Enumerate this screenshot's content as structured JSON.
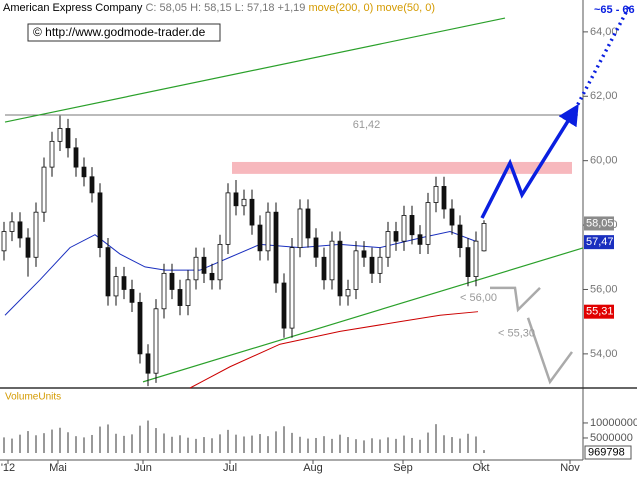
{
  "chart_data": [
    {
      "type": "candlestick",
      "title": "American Express Company",
      "subtitle": "C: 58,05 H: 58,15 L: 57,18 +1,19",
      "source": "© http://www.godmode-trader.de",
      "legend_color": "#d49a00",
      "x": [
        1,
        3,
        5,
        7,
        9,
        11,
        13,
        15,
        17,
        19,
        21,
        23,
        25,
        27,
        29,
        31,
        33,
        35,
        37,
        39,
        41,
        43,
        45,
        47,
        49,
        51,
        53,
        55,
        57,
        59,
        61,
        63,
        65,
        67,
        69,
        71,
        73,
        75,
        77,
        79,
        81,
        83,
        85,
        87,
        89,
        91,
        93,
        95,
        97,
        99,
        101,
        103,
        105,
        107,
        109,
        111,
        113,
        115,
        117,
        119,
        121
      ],
      "open": [
        57.2,
        57.8,
        58.1,
        57.6,
        57.0,
        58.4,
        59.8,
        60.6,
        61.0,
        60.4,
        59.8,
        59.5,
        59.0,
        57.3,
        55.8,
        56.4,
        56.0,
        55.6,
        54.0,
        53.4,
        55.4,
        56.5,
        56.0,
        55.5,
        56.3,
        57.0,
        56.5,
        56.3,
        57.4,
        59.0,
        58.6,
        58.8,
        58.0,
        57.2,
        58.4,
        56.2,
        54.8,
        57.3,
        58.5,
        57.6,
        57.0,
        56.3,
        57.5,
        55.8,
        56.0,
        57.2,
        57.0,
        56.5,
        57.0,
        57.8,
        57.5,
        58.3,
        57.7,
        57.4,
        58.7,
        59.2,
        58.5,
        58.0,
        57.3,
        56.4,
        57.2
      ],
      "high": [
        58.1,
        58.4,
        58.4,
        57.9,
        58.7,
        60.1,
        60.9,
        61.4,
        61.3,
        60.7,
        60.1,
        59.8,
        59.3,
        57.6,
        56.7,
        56.7,
        56.3,
        55.9,
        54.3,
        55.7,
        56.8,
        56.8,
        56.3,
        56.6,
        57.3,
        57.3,
        56.8,
        57.7,
        59.3,
        59.4,
        59.1,
        59.1,
        58.3,
        58.7,
        58.7,
        56.5,
        57.6,
        58.8,
        58.8,
        57.9,
        57.3,
        57.8,
        57.8,
        56.3,
        57.5,
        57.5,
        57.3,
        57.3,
        58.1,
        58.1,
        58.6,
        58.6,
        58.0,
        59.0,
        59.5,
        59.5,
        58.8,
        58.3,
        57.6,
        57.8,
        58.15
      ],
      "low": [
        56.9,
        57.5,
        57.3,
        56.4,
        56.7,
        58.1,
        59.5,
        60.3,
        60.1,
        59.5,
        59.2,
        58.7,
        57.0,
        55.5,
        55.5,
        55.7,
        55.3,
        53.7,
        53.0,
        53.1,
        55.1,
        55.7,
        55.2,
        55.2,
        56.0,
        56.2,
        56.0,
        56.0,
        57.1,
        58.3,
        58.3,
        57.7,
        56.9,
        56.9,
        55.9,
        54.5,
        54.5,
        57.0,
        57.3,
        56.7,
        56.0,
        56.0,
        55.5,
        55.5,
        55.7,
        56.7,
        56.2,
        56.2,
        56.7,
        57.2,
        57.2,
        57.4,
        57.1,
        57.1,
        58.4,
        58.2,
        57.7,
        57.0,
        56.1,
        56.1,
        57.18
      ],
      "close": [
        57.8,
        58.1,
        57.6,
        57.0,
        58.4,
        59.8,
        60.6,
        61.0,
        60.4,
        59.8,
        59.5,
        59.0,
        57.3,
        55.8,
        56.4,
        56.0,
        55.6,
        54.0,
        53.4,
        55.4,
        56.5,
        56.0,
        55.5,
        56.3,
        57.0,
        56.5,
        56.3,
        57.4,
        59.0,
        58.6,
        58.8,
        58.0,
        57.2,
        58.4,
        56.2,
        54.8,
        57.3,
        58.5,
        57.6,
        57.0,
        56.3,
        57.5,
        55.8,
        56.0,
        57.2,
        57.0,
        56.5,
        57.0,
        57.8,
        57.5,
        58.3,
        57.7,
        57.4,
        58.7,
        59.2,
        58.5,
        58.0,
        57.3,
        56.4,
        57.5,
        58.05
      ],
      "series": [
        {
          "name": "move(200, 0)",
          "color": "#cc0000",
          "x": [
            47.5,
            57.5,
            70,
            85,
            100,
            110,
            119.5
          ],
          "values": [
            52.94,
            53.6,
            54.3,
            54.7,
            55.0,
            55.2,
            55.31
          ]
        },
        {
          "name": "move(50, 0)",
          "color": "#1a2fbf",
          "x": [
            1.25,
            10,
            17.5,
            23.75,
            30,
            36.25,
            41.25,
            50,
            57.5,
            65,
            75,
            85,
            95,
            105,
            112.5,
            119.5
          ],
          "values": [
            55.2,
            56.3,
            57.3,
            57.7,
            57.1,
            56.7,
            56.6,
            56.6,
            57.0,
            57.4,
            57.3,
            57.4,
            57.3,
            57.6,
            57.8,
            57.47
          ]
        }
      ],
      "price_labels": [
        {
          "value": 58.05,
          "label": "58,05",
          "color": "#8a8a8a"
        },
        {
          "value": 57.47,
          "label": "57,47",
          "color": "#1a2fbf"
        },
        {
          "value": 55.31,
          "label": "55,31",
          "color": "#e00000"
        }
      ],
      "channels": [
        {
          "color": "#2aa02a",
          "x": [
            1.25,
            126.25
          ],
          "y": [
            61.2,
            64.43
          ]
        },
        {
          "color": "#2aa02a",
          "x": [
            35.75,
            145.75
          ],
          "y": [
            53.13,
            57.29
          ]
        }
      ],
      "resistance": {
        "value": 61.42,
        "label": "61,42",
        "x": [
          1.25,
          144.5
        ]
      },
      "zone": {
        "color": "#f7b8bd",
        "x": [
          58,
          143
        ],
        "y": [
          59.59,
          59.96
        ]
      },
      "projection": {
        "label": "~65 - 66",
        "color": "#0a1fe0",
        "x": [
          120.5,
          127.5,
          130.5,
          143.75
        ],
        "y": [
          58.22,
          59.93,
          58.94,
          61.58
        ],
        "dotted_x": [
          143.75,
          157.5
        ],
        "dotted_y": [
          61.58,
          64.84
        ]
      },
      "targets": [
        {
          "label": "< 56,00",
          "color": "#aaaaaa",
          "x": [
            122.5,
            128.75,
            129.5,
            135
          ],
          "y": [
            56.05,
            56.05,
            55.37,
            56.05
          ]
        },
        {
          "label": "< 55,30",
          "color": "#aaaaaa",
          "x": [
            132,
            137.5,
            143
          ],
          "y": [
            55.12,
            53.13,
            54.06
          ]
        }
      ],
      "xlim": [
        0,
        145.75
      ],
      "ylim": [
        52.94,
        64.99
      ],
      "yticks": [
        {
          "value": 54,
          "label": "54,00"
        },
        {
          "value": 56,
          "label": "56,00"
        },
        {
          "value": 58,
          "label": "58,00"
        },
        {
          "value": 60,
          "label": "60,00"
        },
        {
          "value": 62,
          "label": "62,00"
        },
        {
          "value": 64,
          "label": "64,00"
        }
      ],
      "xticks": [
        {
          "value": 2,
          "label": "'12"
        },
        {
          "value": 14.5,
          "label": "Mai"
        },
        {
          "value": 35.75,
          "label": "Jun"
        },
        {
          "value": 57.5,
          "label": "Jul"
        },
        {
          "value": 78.25,
          "label": "Aug"
        },
        {
          "value": 100.75,
          "label": "Sep"
        },
        {
          "value": 120.25,
          "label": "Okt"
        },
        {
          "value": 142.5,
          "label": "Nov"
        }
      ]
    },
    {
      "type": "bar",
      "title": "VolumeUnits",
      "color": "#999999",
      "x": [
        1,
        3,
        5,
        7,
        9,
        11,
        13,
        15,
        17,
        19,
        21,
        23,
        25,
        27,
        29,
        31,
        33,
        35,
        37,
        39,
        41,
        43,
        45,
        47,
        49,
        51,
        53,
        55,
        57,
        59,
        61,
        63,
        65,
        67,
        69,
        71,
        73,
        75,
        77,
        79,
        81,
        83,
        85,
        87,
        89,
        91,
        93,
        95,
        97,
        99,
        101,
        103,
        105,
        107,
        109,
        111,
        113,
        115,
        117,
        119,
        121
      ],
      "values": [
        5200000,
        4800000,
        6100000,
        7300000,
        5900000,
        6600000,
        7800000,
        8400000,
        6900000,
        5600000,
        5200000,
        6000000,
        8800000,
        9500000,
        6400000,
        5700000,
        6200000,
        9100000,
        10800000,
        8300000,
        6500000,
        5400000,
        5900000,
        5100000,
        4700000,
        5300000,
        4900000,
        6200000,
        7700000,
        6100000,
        5500000,
        5800000,
        6300000,
        5600000,
        7200000,
        8900000,
        6700000,
        5400000,
        4800000,
        5000000,
        5600000,
        4700000,
        6100000,
        5300000,
        4600000,
        4200000,
        4900000,
        4500000,
        5200000,
        4700000,
        5800000,
        5000000,
        4400000,
        6800000,
        9600000,
        5900000,
        5300000,
        4800000,
        6400000,
        5500000,
        969798
      ],
      "xlim": [
        0,
        145.75
      ],
      "ylim": [
        0,
        20300000
      ],
      "yticks": [
        5000000,
        10000000
      ]
    }
  ]
}
